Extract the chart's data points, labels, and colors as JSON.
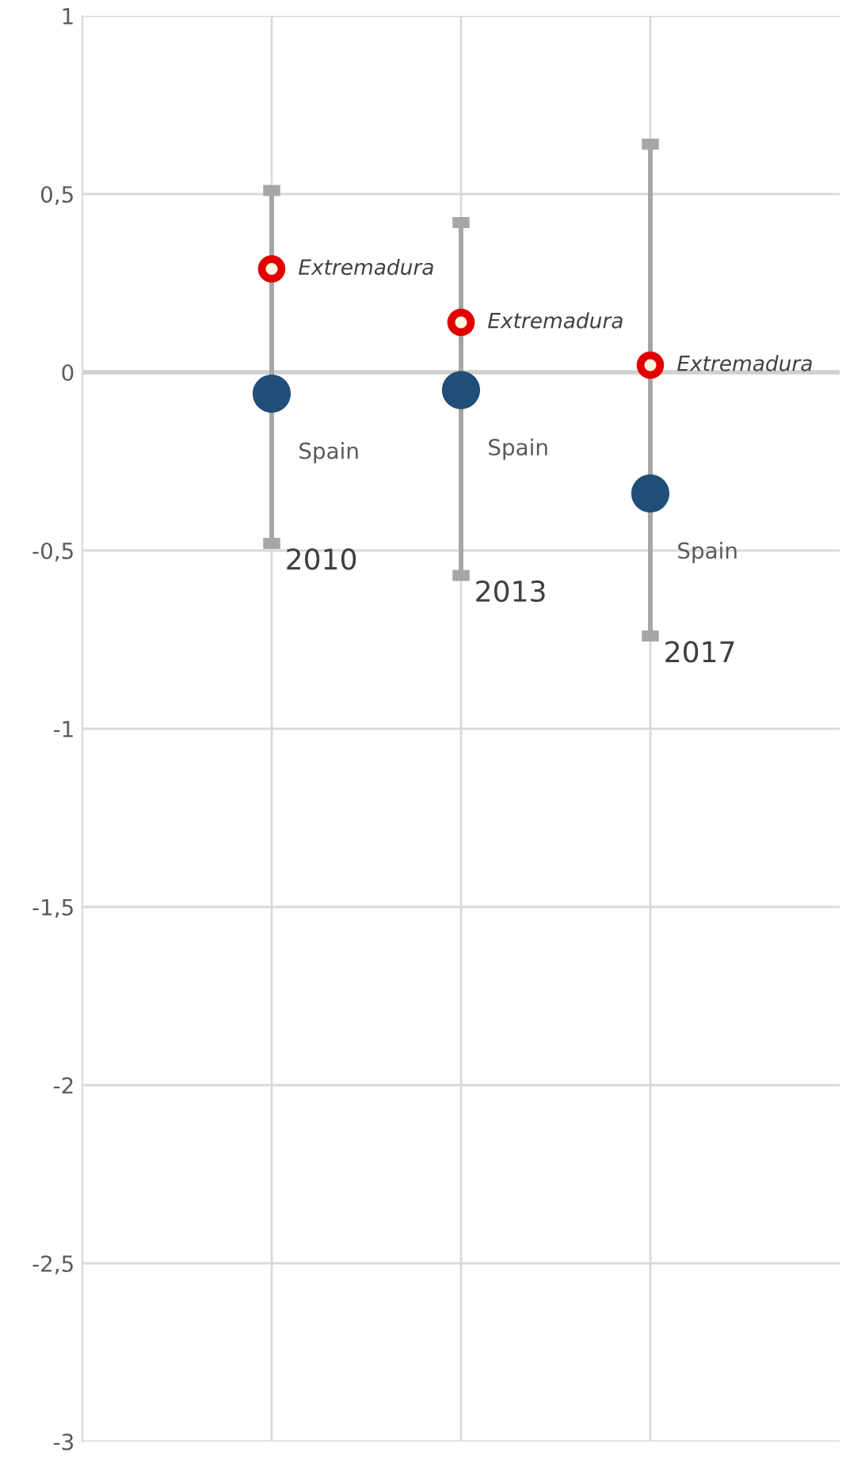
{
  "chart_data": {
    "type": "scatter",
    "categories": [
      null,
      null,
      null
    ],
    "ylim": [
      -3,
      1
    ],
    "yticks": [
      1,
      {
        "value": 0.5,
        "label": "0,5"
      },
      0,
      {
        "value": -0.5,
        "label": "-0,5"
      },
      -1,
      {
        "value": -1.5,
        "label": "-1,5"
      },
      -2,
      {
        "value": -2.5,
        "label": "-2,5"
      },
      -3
    ],
    "tick_labels": "y",
    "grid": true,
    "marker": "circle",
    "series": [
      {
        "type": "bar",
        "color": "#a6a6a6",
        "base": [
          -0.48,
          -0.57,
          -0.74
        ],
        "values": [
          0.99,
          0.99,
          1.38
        ]
      },
      {
        "name": "Spain",
        "color": "#1f4e79",
        "values": [
          -0.06,
          -0.05,
          -0.34
        ]
      },
      {
        "name": "Extremadura",
        "color": "#e00000",
        "values": [
          0.29,
          0.14,
          0.02
        ]
      }
    ],
    "ref_lines": [
      {
        "axis": "y",
        "value": 0,
        "color": "#d0d0d0"
      }
    ],
    "annotations": [
      "2010",
      "2013",
      "2017"
    ]
  }
}
